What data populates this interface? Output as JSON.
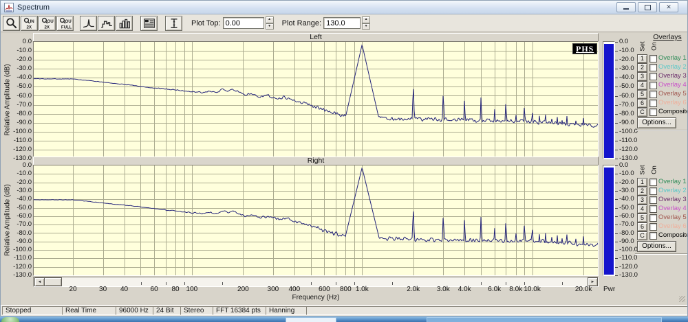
{
  "window": {
    "title": "Spectrum"
  },
  "toolbar": {
    "plot_top_label": "Plot Top:",
    "plot_top_value": "0.00",
    "plot_range_label": "Plot Range:",
    "plot_range_value": "130.0",
    "zoom_buttons": {
      "in2x": [
        "IN",
        "2X"
      ],
      "out2x": [
        "OUT",
        "2X"
      ],
      "outfull": [
        "OUT",
        "FULL"
      ]
    }
  },
  "logo_text": "PHS",
  "overlays": {
    "title": "Overlays",
    "set_label": "Set",
    "on_label": "On",
    "options_label": "Options...",
    "rows": [
      {
        "btn": "1",
        "label": "Overlay 1",
        "color": "#2E8B57",
        "checked": false
      },
      {
        "btn": "2",
        "label": "Overlay 2",
        "color": "#5BC8C8",
        "checked": false
      },
      {
        "btn": "3",
        "label": "Overlay 3",
        "color": "#6B2D6B",
        "checked": false
      },
      {
        "btn": "4",
        "label": "Overlay 4",
        "color": "#C94FC9",
        "checked": false
      },
      {
        "btn": "5",
        "label": "Overlay 5",
        "color": "#A0564E",
        "checked": false
      },
      {
        "btn": "6",
        "label": "Overlay 6",
        "color": "#EFAF9B",
        "checked": false
      },
      {
        "btn": "C",
        "label": "Composite",
        "color": "#000000",
        "checked": false
      }
    ]
  },
  "status_bar": {
    "items": [
      "Stopped",
      "Real Time",
      "96000 Hz",
      "24 Bit",
      "Stereo",
      "FFT 16384 pts",
      "Hanning",
      ""
    ]
  },
  "chart_data": {
    "type": "line",
    "x_scale": "log",
    "x_range_hz": [
      11.76,
      24300
    ],
    "y_range_db": [
      -130,
      0
    ],
    "xlabel": "Frequency (Hz)",
    "ylabel": "Relative Amplitude (dB)",
    "y_tick_step_db": 10,
    "x_ticks": [
      [
        20,
        "20"
      ],
      [
        30,
        "30"
      ],
      [
        40,
        "40"
      ],
      [
        60,
        "60"
      ],
      [
        80,
        "80"
      ],
      [
        100,
        "100"
      ],
      [
        200,
        "200"
      ],
      [
        300,
        "300"
      ],
      [
        400,
        "400"
      ],
      [
        600,
        "600"
      ],
      [
        800,
        "800"
      ],
      [
        1000,
        "1.0k"
      ],
      [
        2000,
        "2.0k"
      ],
      [
        3000,
        "3.0k"
      ],
      [
        4000,
        "4.0k"
      ],
      [
        6000,
        "6.0k"
      ],
      [
        8000,
        "8.0k"
      ],
      [
        10000,
        "10.0k"
      ],
      [
        20000,
        "20.0k"
      ]
    ],
    "x_minor_ticks": [
      50,
      70,
      90,
      150,
      500,
      700,
      900,
      1500,
      5000,
      7000,
      9000,
      15000
    ],
    "meter_label": "Pwr",
    "meter_level_db": 0,
    "line_color": "#23237A",
    "plot_bg": "#FFFFDC",
    "grid_color": "#ABAB8F",
    "meter_color": "#1414CC",
    "charts": [
      {
        "title": "Left",
        "noise_seed": 101,
        "envelope_db": [
          [
            11.76,
            -41
          ],
          [
            20,
            -41.3
          ],
          [
            26,
            -43.5
          ],
          [
            34,
            -46
          ],
          [
            45,
            -48.5
          ],
          [
            60,
            -51.5
          ],
          [
            75,
            -53
          ],
          [
            95,
            -55
          ],
          [
            115,
            -56.5
          ],
          [
            128,
            -54.5
          ],
          [
            140,
            -56.5
          ],
          [
            152,
            -52.5
          ],
          [
            163,
            -55.5
          ],
          [
            175,
            -53
          ],
          [
            190,
            -56
          ],
          [
            205,
            -59
          ],
          [
            225,
            -57.5
          ],
          [
            250,
            -61
          ],
          [
            280,
            -59.5
          ],
          [
            310,
            -63
          ],
          [
            350,
            -61.5
          ],
          [
            400,
            -65
          ],
          [
            450,
            -68
          ],
          [
            520,
            -71
          ],
          [
            600,
            -76
          ],
          [
            700,
            -80
          ],
          [
            800,
            -82.5
          ],
          [
            950,
            -83
          ],
          [
            1250,
            -84
          ],
          [
            1600,
            -85.5
          ],
          [
            2200,
            -86
          ],
          [
            3000,
            -86.5
          ],
          [
            4500,
            -87.5
          ],
          [
            6500,
            -88
          ],
          [
            9000,
            -88.5
          ],
          [
            12000,
            -90
          ],
          [
            16000,
            -91.5
          ],
          [
            20600,
            -93
          ],
          [
            24300,
            -94
          ]
        ],
        "harmonics_db": [
          [
            1000,
            -3
          ],
          [
            2000,
            -46
          ],
          [
            3000,
            -53
          ],
          [
            4000,
            -61
          ],
          [
            5000,
            -58
          ],
          [
            6000,
            -69
          ],
          [
            7000,
            -62
          ],
          [
            8000,
            -73
          ],
          [
            9000,
            -66
          ],
          [
            10000,
            -70
          ],
          [
            11000,
            -79
          ],
          [
            12000,
            -76
          ],
          [
            13000,
            -81
          ],
          [
            14000,
            -78
          ],
          [
            15000,
            -83
          ],
          [
            16000,
            -80
          ],
          [
            17000,
            -84
          ],
          [
            18000,
            -82
          ],
          [
            19000,
            -85
          ],
          [
            20000,
            -83
          ]
        ]
      },
      {
        "title": "Right",
        "noise_seed": 202,
        "envelope_db": [
          [
            11.76,
            -40.5
          ],
          [
            20,
            -40.8
          ],
          [
            26,
            -43
          ],
          [
            34,
            -45.5
          ],
          [
            45,
            -48
          ],
          [
            60,
            -51
          ],
          [
            75,
            -53.5
          ],
          [
            95,
            -55.5
          ],
          [
            115,
            -57
          ],
          [
            128,
            -55
          ],
          [
            140,
            -57
          ],
          [
            152,
            -53.5
          ],
          [
            163,
            -56
          ],
          [
            175,
            -54
          ],
          [
            190,
            -57
          ],
          [
            205,
            -60
          ],
          [
            225,
            -58
          ],
          [
            250,
            -62
          ],
          [
            280,
            -60
          ],
          [
            310,
            -63.5
          ],
          [
            350,
            -62
          ],
          [
            400,
            -66
          ],
          [
            450,
            -69
          ],
          [
            520,
            -72
          ],
          [
            600,
            -77
          ],
          [
            700,
            -81
          ],
          [
            800,
            -84
          ],
          [
            950,
            -85
          ],
          [
            1250,
            -86
          ],
          [
            1600,
            -87
          ],
          [
            2200,
            -87.5
          ],
          [
            3000,
            -88
          ],
          [
            4500,
            -88.5
          ],
          [
            6500,
            -89
          ],
          [
            9000,
            -89
          ],
          [
            12000,
            -90.5
          ],
          [
            16000,
            -92
          ],
          [
            20600,
            -93.5
          ],
          [
            24300,
            -94
          ]
        ],
        "harmonics_db": [
          [
            1000,
            -2.5
          ],
          [
            2000,
            -48
          ],
          [
            3000,
            -55
          ],
          [
            4000,
            -60
          ],
          [
            5000,
            -57
          ],
          [
            6000,
            -68
          ],
          [
            7000,
            -61
          ],
          [
            8000,
            -72
          ],
          [
            9000,
            -64
          ],
          [
            10000,
            -67
          ],
          [
            11000,
            -78
          ],
          [
            12000,
            -75
          ],
          [
            13000,
            -80
          ],
          [
            14000,
            -77
          ],
          [
            15000,
            -82
          ],
          [
            16000,
            -79
          ],
          [
            17000,
            -83
          ],
          [
            18000,
            -81
          ],
          [
            19000,
            -84
          ],
          [
            20000,
            -82
          ]
        ]
      }
    ]
  }
}
